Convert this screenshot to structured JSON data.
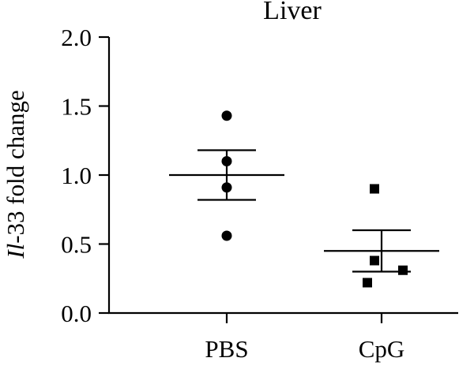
{
  "chart_data": {
    "type": "scatter",
    "title": "Liver",
    "ylabel": {
      "italic": "Il",
      "rest": "-33 fold change"
    },
    "xlabel": "",
    "ylim": [
      0,
      2.0
    ],
    "yticks": [
      "0.0",
      "0.5",
      "1.0",
      "1.5",
      "2.0"
    ],
    "categories": [
      "PBS",
      "CpG"
    ],
    "grid": false,
    "groups": [
      {
        "category": "PBS",
        "marker": "circle",
        "values": [
          1.43,
          1.1,
          0.91,
          0.56
        ],
        "mean": 1.0,
        "sem_low": 0.82,
        "sem_high": 1.18
      },
      {
        "category": "CpG",
        "marker": "square",
        "values": [
          0.9,
          0.38,
          0.31,
          0.22
        ],
        "mean": 0.45,
        "sem_low": 0.3,
        "sem_high": 0.6
      }
    ],
    "color": "#000000"
  }
}
